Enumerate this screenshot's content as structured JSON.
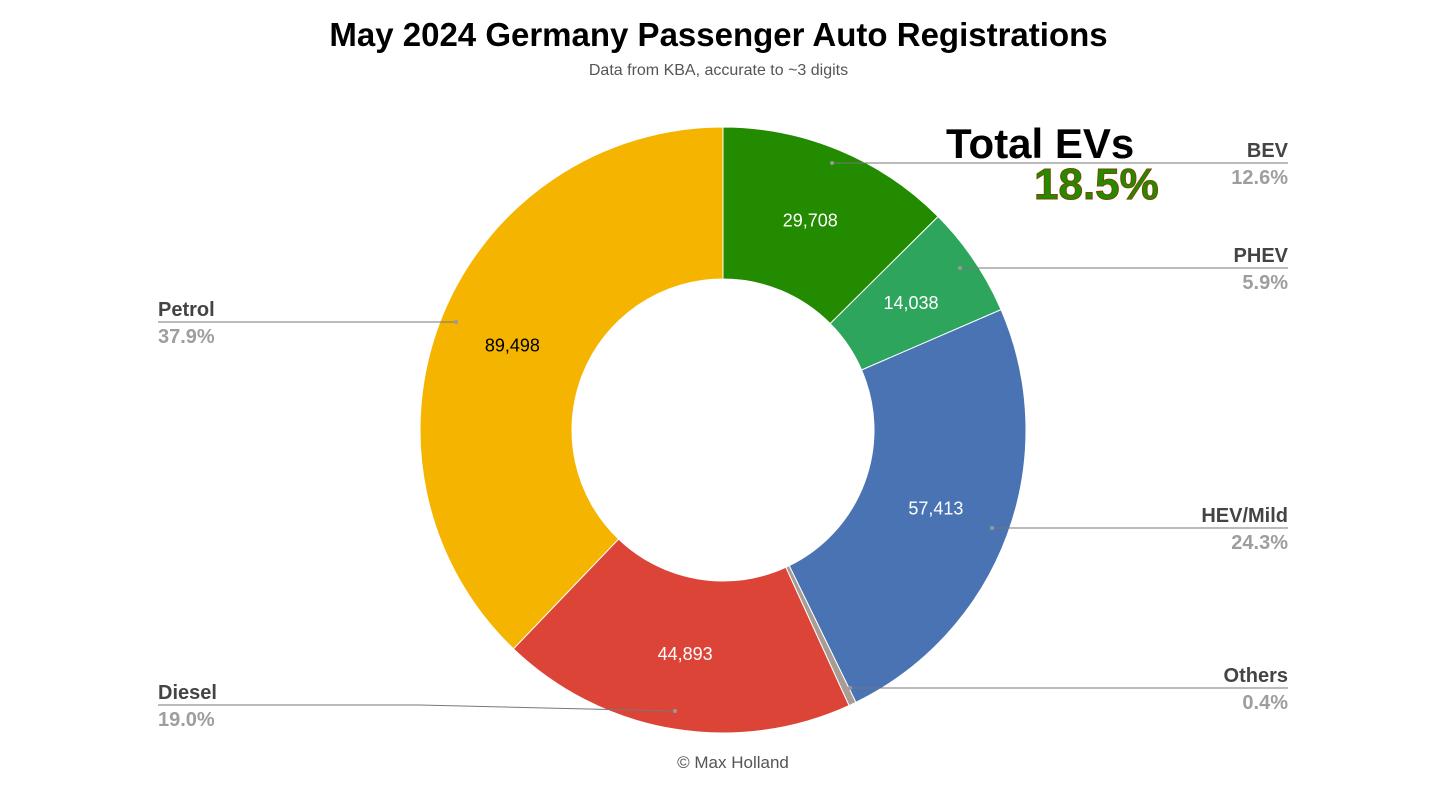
{
  "chart_data": {
    "type": "pie",
    "donut": true,
    "title": "May 2024 Germany Passenger Auto Registrations",
    "subtitle": "Data from KBA, accurate to ~3 digits",
    "legend": "none",
    "slices": [
      {
        "name": "BEV",
        "value": 29708,
        "value_label": "29,708",
        "percent_label": "12.6%",
        "color": "#228b00",
        "value_color": "#ffffff"
      },
      {
        "name": "PHEV",
        "value": 14038,
        "value_label": "14,038",
        "percent_label": "5.9%",
        "color": "#2ea55c",
        "value_color": "#ffffff"
      },
      {
        "name": "HEV/Mild",
        "value": 57413,
        "value_label": "57,413",
        "percent_label": "24.3%",
        "color": "#4a73b3",
        "value_color": "#ffffff"
      },
      {
        "name": "Others",
        "value": 940,
        "percent_label": "0.4%",
        "color": "#a89c94"
      },
      {
        "name": "Diesel",
        "value": 44893,
        "value_label": "44,893",
        "percent_label": "19.0%",
        "color": "#dd4438",
        "value_color": "#ffffff"
      },
      {
        "name": "Petrol",
        "value": 89498,
        "value_label": "89,498",
        "percent_label": "37.9%",
        "color": "#f4b400",
        "value_color": "#000000"
      }
    ]
  },
  "annotation": {
    "title": "Total EVs",
    "value": "18.5%"
  },
  "credit": "© Max Holland"
}
